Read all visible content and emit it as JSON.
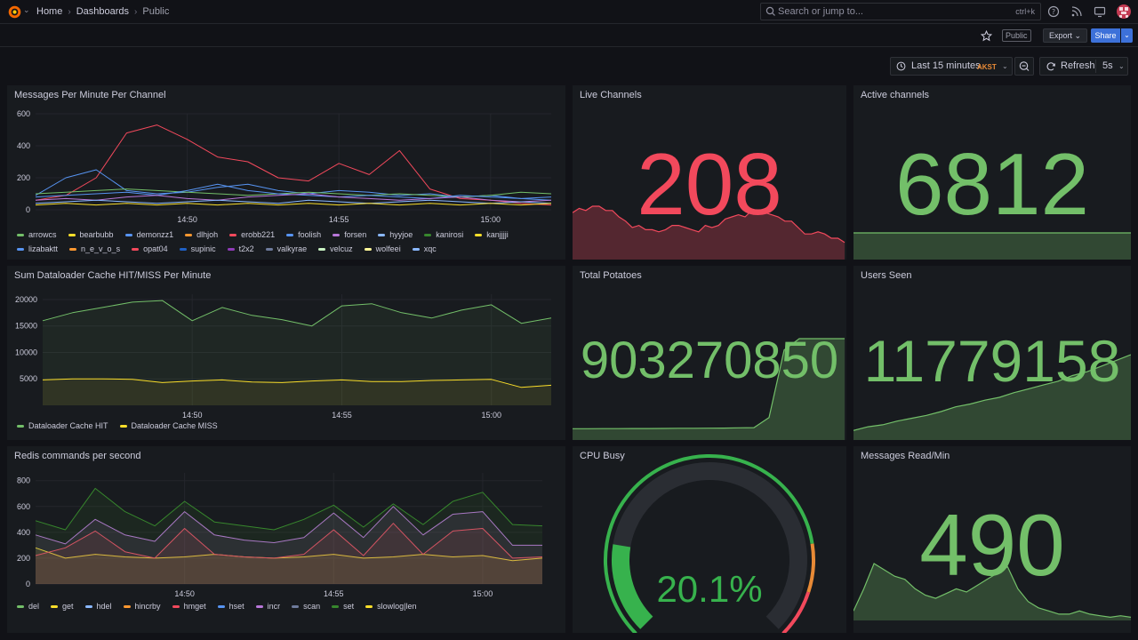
{
  "nav": {
    "breadcrumbs": [
      "Home",
      "Dashboards",
      "Public"
    ],
    "search_placeholder": "Search or jump to...",
    "search_shortcut": "ctrl+k"
  },
  "toolbar": {
    "public_badge": "Public",
    "export_label": "Export",
    "share_label": "Share",
    "time_range": "Last 15 minutes",
    "timezone": "AKST",
    "refresh_label": "Refresh",
    "refresh_interval": "5s"
  },
  "colors": {
    "green": "#73bf69",
    "red": "#f2495c",
    "yellow": "#fade2a",
    "blue": "#5794f2",
    "orange": "#ff9830",
    "purple": "#b877d9",
    "dark_green": "#37872d",
    "teal": "#8ab8ff"
  },
  "panels": {
    "messages": {
      "title": "Messages Per Minute Per Channel",
      "legend": [
        {
          "name": "arrowcs",
          "color": "#73bf69"
        },
        {
          "name": "bearbubb",
          "color": "#fade2a"
        },
        {
          "name": "demonzz1",
          "color": "#5794f2"
        },
        {
          "name": "dlhjoh",
          "color": "#ff9830"
        },
        {
          "name": "erobb221",
          "color": "#f2495c"
        },
        {
          "name": "foolish",
          "color": "#5794f2"
        },
        {
          "name": "forsen",
          "color": "#b877d9"
        },
        {
          "name": "hyyjoe",
          "color": "#8ab8ff"
        },
        {
          "name": "kanirosi",
          "color": "#37872d"
        },
        {
          "name": "kanjjjji",
          "color": "#fade2a"
        },
        {
          "name": "lizabaktt",
          "color": "#5794f2"
        },
        {
          "name": "n_e_v_o_s",
          "color": "#ff9830"
        },
        {
          "name": "opat04",
          "color": "#f2495c"
        },
        {
          "name": "supinic",
          "color": "#1f60c4"
        },
        {
          "name": "t2x2",
          "color": "#8f3bb8"
        },
        {
          "name": "valkyrae",
          "color": "#6e7b9c"
        },
        {
          "name": "velcuz",
          "color": "#c8f2c2"
        },
        {
          "name": "wolfeei",
          "color": "#fff899"
        },
        {
          "name": "xqc",
          "color": "#8ab8ff"
        }
      ]
    },
    "dataloader": {
      "title": "Sum Dataloader Cache HIT/MISS Per Minute",
      "legend": [
        {
          "name": "Dataloader Cache HIT",
          "color": "#73bf69"
        },
        {
          "name": "Dataloader Cache MISS",
          "color": "#fade2a"
        }
      ]
    },
    "redis": {
      "title": "Redis commands per second",
      "legend": [
        {
          "name": "del",
          "color": "#73bf69"
        },
        {
          "name": "get",
          "color": "#fade2a"
        },
        {
          "name": "hdel",
          "color": "#8ab8ff"
        },
        {
          "name": "hincrby",
          "color": "#ff9830"
        },
        {
          "name": "hmget",
          "color": "#f2495c"
        },
        {
          "name": "hset",
          "color": "#5794f2"
        },
        {
          "name": "incr",
          "color": "#b877d9"
        },
        {
          "name": "scan",
          "color": "#6e7b9c"
        },
        {
          "name": "set",
          "color": "#37872d"
        },
        {
          "name": "slowlog|len",
          "color": "#fade2a"
        }
      ]
    },
    "live_channels": {
      "title": "Live Channels",
      "value": "208",
      "color": "#f2495c"
    },
    "active_channels": {
      "title": "Active channels",
      "value": "6812",
      "color": "#73bf69"
    },
    "total_potatoes": {
      "title": "Total Potatoes",
      "value": "903270850",
      "color": "#73bf69"
    },
    "users_seen": {
      "title": "Users Seen",
      "value": "11779158",
      "color": "#73bf69"
    },
    "cpu_busy": {
      "title": "CPU Busy",
      "value": "20.1%",
      "gauge_fraction": 0.201,
      "color": "#37872d"
    },
    "messages_read": {
      "title": "Messages Read/Min",
      "value": "490",
      "color": "#73bf69"
    }
  },
  "chart_data": [
    {
      "type": "line",
      "title": "Messages Per Minute Per Channel",
      "x_ticks": [
        "14:50",
        "14:55",
        "15:00"
      ],
      "y_ticks": [
        "0",
        "200",
        "400",
        "600"
      ],
      "ylim": [
        0,
        600
      ],
      "x": [
        "14:45",
        "14:46",
        "14:47",
        "14:48",
        "14:49",
        "14:50",
        "14:51",
        "14:52",
        "14:53",
        "14:54",
        "14:55",
        "14:56",
        "14:57",
        "14:58",
        "14:59",
        "15:00",
        "15:01",
        "15:02"
      ],
      "series": [
        {
          "name": "erobb221",
          "values": [
            60,
            90,
            200,
            480,
            530,
            440,
            330,
            300,
            200,
            180,
            290,
            220,
            370,
            130,
            70,
            60,
            40,
            30
          ]
        },
        {
          "name": "demonzz1",
          "values": [
            90,
            200,
            250,
            120,
            100,
            110,
            140,
            160,
            120,
            100,
            120,
            110,
            90,
            100,
            80,
            90,
            70,
            60
          ]
        },
        {
          "name": "arrowcs",
          "values": [
            100,
            110,
            120,
            130,
            120,
            110,
            100,
            90,
            100,
            110,
            100,
            90,
            100,
            90,
            80,
            90,
            110,
            100
          ]
        },
        {
          "name": "lizabaktt",
          "values": [
            80,
            90,
            100,
            110,
            90,
            120,
            160,
            120,
            100,
            90,
            80,
            90,
            80,
            70,
            90,
            80,
            70,
            80
          ]
        },
        {
          "name": "forsen",
          "values": [
            60,
            70,
            60,
            80,
            90,
            70,
            60,
            80,
            90,
            100,
            80,
            70,
            60,
            70,
            80,
            60,
            50,
            60
          ]
        },
        {
          "name": "xqc",
          "values": [
            40,
            50,
            60,
            50,
            40,
            50,
            60,
            50,
            40,
            60,
            50,
            40,
            50,
            60,
            50,
            40,
            50,
            40
          ]
        },
        {
          "name": "kanjjjji",
          "values": [
            30,
            40,
            30,
            40,
            30,
            40,
            30,
            40,
            30,
            40,
            30,
            40,
            30,
            40,
            30,
            40,
            30,
            40
          ]
        }
      ]
    },
    {
      "type": "area",
      "title": "Sum Dataloader Cache HIT/MISS Per Minute",
      "x_ticks": [
        "14:50",
        "14:55",
        "15:00"
      ],
      "y_ticks": [
        "5000",
        "10000",
        "15000",
        "20000"
      ],
      "ylim": [
        0,
        21000
      ],
      "x": [
        "14:45",
        "14:46",
        "14:47",
        "14:48",
        "14:49",
        "14:50",
        "14:51",
        "14:52",
        "14:53",
        "14:54",
        "14:55",
        "14:56",
        "14:57",
        "14:58",
        "14:59",
        "15:00",
        "15:01",
        "15:02"
      ],
      "series": [
        {
          "name": "Dataloader Cache HIT",
          "values": [
            16000,
            17500,
            18500,
            19500,
            19800,
            16000,
            18500,
            17000,
            16200,
            15000,
            18800,
            19200,
            17500,
            16500,
            18000,
            19000,
            15500,
            16500
          ]
        },
        {
          "name": "Dataloader Cache MISS",
          "values": [
            4800,
            5000,
            5000,
            4900,
            4300,
            4600,
            4800,
            4400,
            4300,
            4600,
            4800,
            4500,
            4500,
            4700,
            4800,
            4900,
            3400,
            3800
          ]
        }
      ]
    },
    {
      "type": "area",
      "title": "Redis commands per second",
      "x_ticks": [
        "14:50",
        "14:55",
        "15:00"
      ],
      "y_ticks": [
        "0",
        "200",
        "400",
        "600",
        "800"
      ],
      "ylim": [
        0,
        860
      ],
      "x": [
        "14:45",
        "14:46",
        "14:47",
        "14:48",
        "14:49",
        "14:50",
        "14:51",
        "14:52",
        "14:53",
        "14:54",
        "14:55",
        "14:56",
        "14:57",
        "14:58",
        "14:59",
        "15:00",
        "15:01",
        "15:02"
      ],
      "series": [
        {
          "name": "get",
          "values": [
            280,
            200,
            230,
            210,
            200,
            210,
            230,
            210,
            200,
            210,
            230,
            200,
            210,
            230,
            210,
            220,
            180,
            200
          ]
        },
        {
          "name": "hmget",
          "values": [
            220,
            280,
            410,
            250,
            200,
            430,
            230,
            210,
            200,
            230,
            420,
            220,
            470,
            230,
            410,
            430,
            200,
            210
          ]
        },
        {
          "name": "incr",
          "values": [
            380,
            310,
            500,
            380,
            330,
            560,
            380,
            340,
            320,
            360,
            550,
            360,
            600,
            380,
            540,
            560,
            300,
            300
          ]
        },
        {
          "name": "set",
          "values": [
            490,
            420,
            740,
            560,
            450,
            640,
            480,
            450,
            420,
            500,
            610,
            440,
            620,
            460,
            640,
            710,
            460,
            450
          ]
        }
      ]
    },
    {
      "type": "area",
      "title": "Live Channels",
      "values": [
        220,
        240,
        230,
        250,
        250,
        230,
        230,
        200,
        180,
        150,
        160,
        140,
        140,
        130,
        140,
        160,
        160,
        150,
        140,
        130,
        160,
        150,
        160,
        190,
        200,
        210,
        200,
        230,
        230,
        220,
        210,
        200,
        180,
        180,
        150,
        120,
        120,
        130,
        120,
        100,
        100,
        80
      ]
    },
    {
      "type": "area",
      "title": "Active channels",
      "values": [
        6812,
        6812,
        6812,
        6812,
        6812,
        6812,
        6812,
        6812,
        6812,
        6812
      ]
    },
    {
      "type": "area",
      "title": "Total Potatoes",
      "values": [
        100,
        100,
        101,
        101,
        102,
        102,
        103,
        104,
        104,
        105,
        106,
        108,
        110,
        200,
        800,
        900,
        900,
        900,
        900
      ]
    },
    {
      "type": "area",
      "title": "Users Seen",
      "values": [
        100,
        140,
        160,
        200,
        230,
        260,
        300,
        350,
        380,
        420,
        450,
        500,
        540,
        580,
        620,
        680,
        720,
        780,
        840,
        900
      ]
    },
    {
      "type": "area",
      "title": "Messages Read/Min",
      "values": [
        60,
        200,
        360,
        320,
        280,
        260,
        200,
        160,
        140,
        170,
        200,
        180,
        220,
        260,
        300,
        340,
        200,
        120,
        80,
        60,
        40,
        40,
        60,
        40,
        30,
        20,
        30,
        20
      ]
    }
  ]
}
